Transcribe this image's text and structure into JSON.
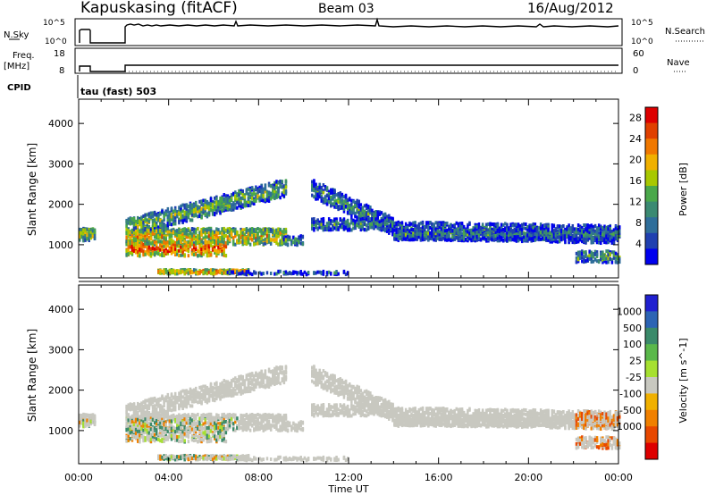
{
  "header": {
    "station": "Kapuskasing (fitACF)",
    "beam": "Beam 03",
    "date": "16/Aug/2012"
  },
  "aux_panels": {
    "nsky_label": "N.Sky",
    "nsky_ticks": [
      "10^5",
      "10^0"
    ],
    "nsearch_label": "N.Search",
    "nsearch_ticks": [
      "10^5",
      "10^0"
    ],
    "freq_label": "Freq.",
    "freq_unit": "[MHz]",
    "freq_ticks": [
      "18",
      "8"
    ],
    "nave_label": "Nave",
    "nave_ticks": [
      "60",
      "0"
    ],
    "cpid_label": "CPID",
    "cpid_value": "tau (fast) 503"
  },
  "colors": {
    "power_scale": [
      "#0000ee",
      "#2040b0",
      "#2f6e9a",
      "#3b8a72",
      "#4aa84a",
      "#a8c800",
      "#f0b000",
      "#f07800",
      "#e04000",
      "#dd0000"
    ],
    "velocity_scale": [
      "#2020d0",
      "#2c64b4",
      "#3a8a6a",
      "#5ab84a",
      "#a6e030",
      "#c8c8c0",
      "#f0b000",
      "#f08000",
      "#e84800",
      "#dd0000"
    ]
  },
  "chart_data": [
    {
      "type": "heatmap",
      "title": "Power",
      "ylabel": "Slant Range [km]",
      "xlabel": "Time UT",
      "ylim": [
        180,
        4600
      ],
      "yticks": [
        "1000",
        "2000",
        "3000",
        "4000"
      ],
      "xticks": [
        "00:00",
        "04:00",
        "08:00",
        "12:00",
        "16:00",
        "20:00",
        "00:00"
      ],
      "colorbar_label": "Power [dB]",
      "colorbar_ticks": [
        "4",
        "8",
        "12",
        "16",
        "20",
        "24",
        "28"
      ],
      "colorbar_range": [
        0,
        30
      ]
    },
    {
      "type": "heatmap",
      "title": "Velocity",
      "ylabel": "Slant Range [km]",
      "xlabel": "Time UT",
      "ylim": [
        180,
        4600
      ],
      "yticks": [
        "1000",
        "2000",
        "3000",
        "4000"
      ],
      "xticks": [
        "00:00",
        "04:00",
        "08:00",
        "12:00",
        "16:00",
        "20:00",
        "00:00"
      ],
      "colorbar_label": "Velocity [m s^-1]",
      "colorbar_ticks": [
        "1000",
        "500",
        "100",
        "25",
        "-25",
        "-100",
        "-500",
        "-1000"
      ]
    }
  ]
}
